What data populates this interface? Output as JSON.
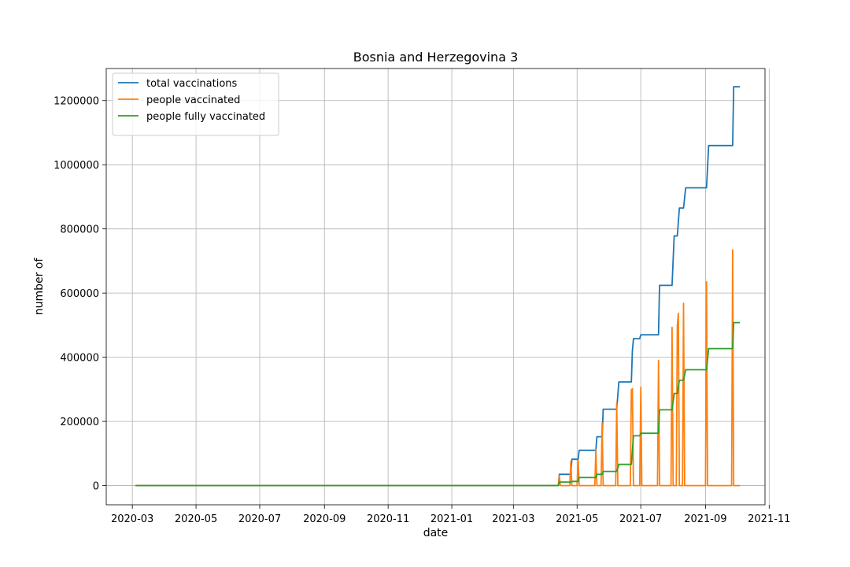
{
  "chart_data": {
    "type": "line",
    "title": "Bosnia and Herzegovina 3",
    "xlabel": "date",
    "ylabel": "number of",
    "xlim": [
      "2020-02-05",
      "2021-10-28"
    ],
    "ylim": [
      -60000,
      1300000
    ],
    "x_ticks": [
      "2020-03",
      "2020-05",
      "2020-07",
      "2020-09",
      "2020-11",
      "2021-01",
      "2021-03",
      "2021-05",
      "2021-07",
      "2021-09",
      "2021-11"
    ],
    "y_ticks": [
      0,
      200000,
      400000,
      600000,
      800000,
      1000000,
      1200000
    ],
    "grid": true,
    "legend_position": "upper left",
    "series": [
      {
        "name": "total vaccinations",
        "color": "#1f77b4",
        "points": [
          [
            "2020-03-04",
            0
          ],
          [
            "2021-04-13",
            0
          ],
          [
            "2021-04-14",
            35000
          ],
          [
            "2021-04-25",
            35000
          ],
          [
            "2021-04-26",
            82000
          ],
          [
            "2021-05-02",
            82000
          ],
          [
            "2021-05-03",
            110000
          ],
          [
            "2021-05-19",
            110000
          ],
          [
            "2021-05-20",
            152000
          ],
          [
            "2021-05-25",
            152000
          ],
          [
            "2021-05-26",
            238000
          ],
          [
            "2021-06-08",
            238000
          ],
          [
            "2021-06-10",
            323000
          ],
          [
            "2021-06-22",
            323000
          ],
          [
            "2021-06-23",
            420000
          ],
          [
            "2021-06-24",
            458000
          ],
          [
            "2021-06-30",
            458000
          ],
          [
            "2021-07-01",
            470000
          ],
          [
            "2021-07-18",
            470000
          ],
          [
            "2021-07-19",
            624000
          ],
          [
            "2021-07-31",
            624000
          ],
          [
            "2021-08-02",
            778000
          ],
          [
            "2021-08-05",
            778000
          ],
          [
            "2021-08-07",
            865000
          ],
          [
            "2021-08-11",
            865000
          ],
          [
            "2021-08-13",
            928000
          ],
          [
            "2021-09-02",
            928000
          ],
          [
            "2021-09-04",
            1060000
          ],
          [
            "2021-09-27",
            1060000
          ],
          [
            "2021-09-28",
            1243000
          ],
          [
            "2021-10-04",
            1243000
          ]
        ]
      },
      {
        "name": "people vaccinated",
        "color": "#ff7f0e",
        "points": [
          [
            "2020-03-04",
            0
          ],
          [
            "2021-04-13",
            0
          ],
          [
            "2021-04-14",
            30000
          ],
          [
            "2021-04-15",
            0
          ],
          [
            "2021-04-24",
            0
          ],
          [
            "2021-04-25",
            75000
          ],
          [
            "2021-04-26",
            0
          ],
          [
            "2021-05-01",
            0
          ],
          [
            "2021-05-02",
            80000
          ],
          [
            "2021-05-03",
            0
          ],
          [
            "2021-05-18",
            0
          ],
          [
            "2021-05-19",
            112000
          ],
          [
            "2021-05-20",
            0
          ],
          [
            "2021-05-24",
            0
          ],
          [
            "2021-05-25",
            195000
          ],
          [
            "2021-05-26",
            0
          ],
          [
            "2021-06-07",
            0
          ],
          [
            "2021-06-08",
            258000
          ],
          [
            "2021-06-09",
            0
          ],
          [
            "2021-06-21",
            0
          ],
          [
            "2021-06-22",
            298000
          ],
          [
            "2021-06-23",
            302000
          ],
          [
            "2021-06-24",
            0
          ],
          [
            "2021-06-30",
            0
          ],
          [
            "2021-07-01",
            307000
          ],
          [
            "2021-07-02",
            0
          ],
          [
            "2021-07-17",
            0
          ],
          [
            "2021-07-18",
            390000
          ],
          [
            "2021-07-19",
            0
          ],
          [
            "2021-07-30",
            0
          ],
          [
            "2021-07-31",
            493000
          ],
          [
            "2021-08-01",
            0
          ],
          [
            "2021-08-04",
            0
          ],
          [
            "2021-08-05",
            500000
          ],
          [
            "2021-08-06",
            537000
          ],
          [
            "2021-08-07",
            0
          ],
          [
            "2021-08-10",
            0
          ],
          [
            "2021-08-11",
            568000
          ],
          [
            "2021-08-12",
            0
          ],
          [
            "2021-09-01",
            0
          ],
          [
            "2021-09-02",
            635000
          ],
          [
            "2021-09-03",
            0
          ],
          [
            "2021-09-26",
            0
          ],
          [
            "2021-09-27",
            735000
          ],
          [
            "2021-09-28",
            0
          ],
          [
            "2021-10-04",
            0
          ]
        ]
      },
      {
        "name": "people fully vaccinated",
        "color": "#2ca02c",
        "points": [
          [
            "2020-03-04",
            0
          ],
          [
            "2021-04-13",
            0
          ],
          [
            "2021-04-14",
            11000
          ],
          [
            "2021-04-25",
            11000
          ],
          [
            "2021-04-26",
            13000
          ],
          [
            "2021-05-02",
            13000
          ],
          [
            "2021-05-03",
            25000
          ],
          [
            "2021-05-19",
            25000
          ],
          [
            "2021-05-20",
            35000
          ],
          [
            "2021-05-25",
            35000
          ],
          [
            "2021-05-26",
            44000
          ],
          [
            "2021-06-08",
            44000
          ],
          [
            "2021-06-10",
            66000
          ],
          [
            "2021-06-22",
            66000
          ],
          [
            "2021-06-24",
            155000
          ],
          [
            "2021-06-30",
            155000
          ],
          [
            "2021-07-01",
            163000
          ],
          [
            "2021-07-18",
            163000
          ],
          [
            "2021-07-19",
            236000
          ],
          [
            "2021-07-31",
            236000
          ],
          [
            "2021-08-02",
            287000
          ],
          [
            "2021-08-05",
            287000
          ],
          [
            "2021-08-07",
            328000
          ],
          [
            "2021-08-11",
            328000
          ],
          [
            "2021-08-13",
            361000
          ],
          [
            "2021-09-02",
            361000
          ],
          [
            "2021-09-04",
            427000
          ],
          [
            "2021-09-27",
            427000
          ],
          [
            "2021-09-28",
            508000
          ],
          [
            "2021-10-04",
            508000
          ]
        ]
      }
    ]
  }
}
